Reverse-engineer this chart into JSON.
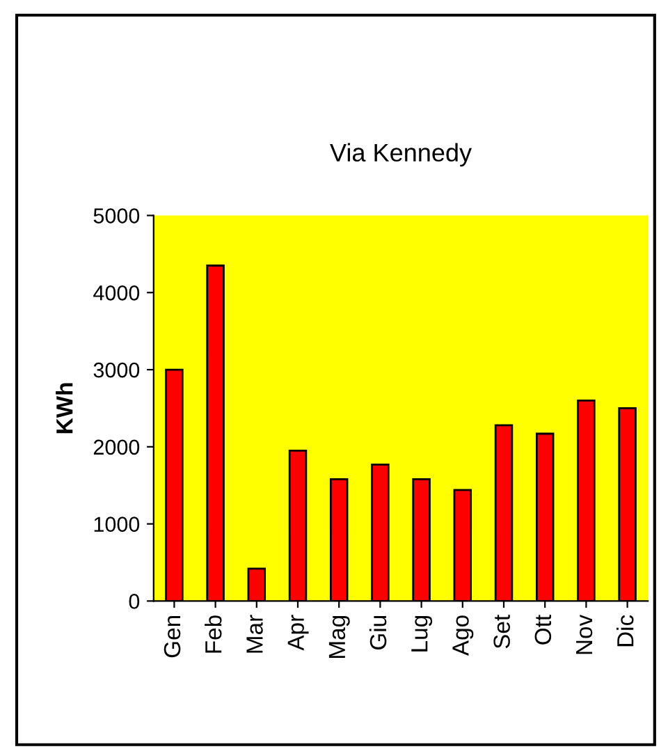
{
  "chart_data": {
    "type": "bar",
    "title": "Via Kennedy",
    "ylabel": "KWh",
    "categories": [
      "Gen",
      "Feb",
      "Mar",
      "Apr",
      "Mag",
      "Giu",
      "Lug",
      "Ago",
      "Set",
      "Ott",
      "Nov",
      "Dic"
    ],
    "values": [
      3000,
      4350,
      420,
      1950,
      1580,
      1770,
      1580,
      1440,
      2280,
      2170,
      2600,
      2500
    ],
    "color": "#ff0000",
    "ylim": [
      0,
      5000
    ],
    "yticks": [
      0,
      1000,
      2000,
      3000,
      4000,
      5000
    ],
    "grid": false
  }
}
